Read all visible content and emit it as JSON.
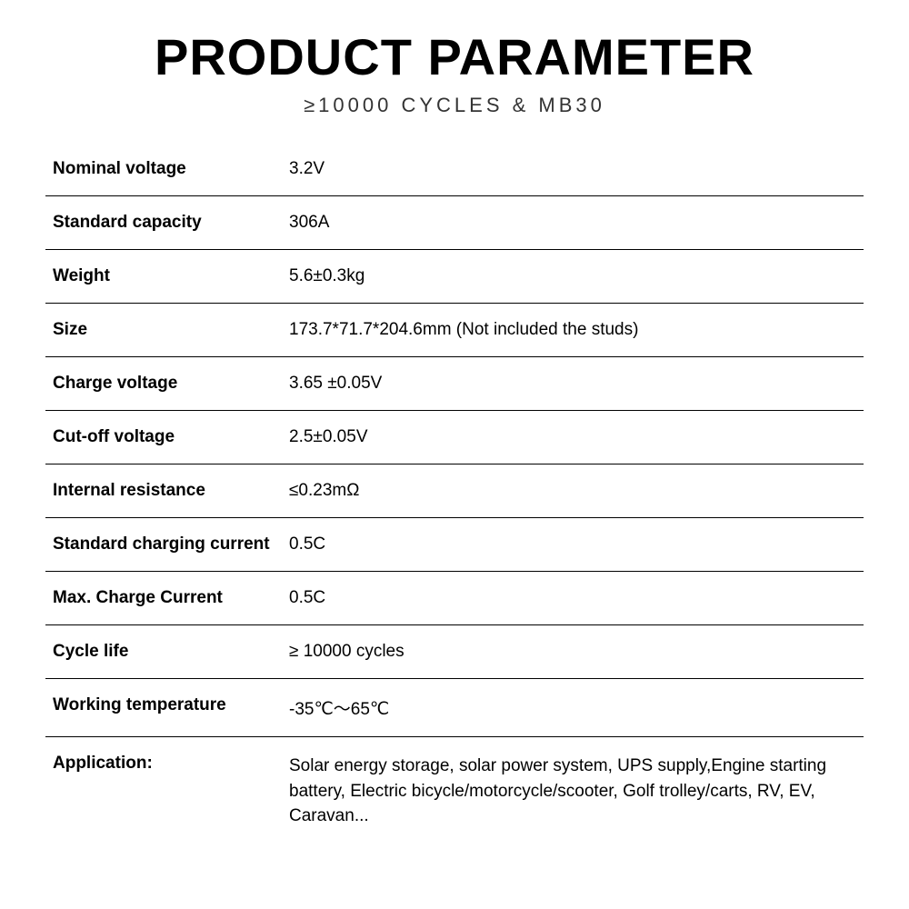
{
  "header": {
    "title": "PRODUCT PARAMETER",
    "subtitle": "≥10000 CYCLES & MB30"
  },
  "specs": [
    {
      "label": "Nominal voltage",
      "value": "3.2V"
    },
    {
      "label": "Standard capacity",
      "value": "306A"
    },
    {
      "label": "Weight",
      "value": "5.6±0.3kg"
    },
    {
      "label": "Size",
      "value": "173.7*71.7*204.6mm (Not included the studs)"
    },
    {
      "label": "Charge voltage",
      "value": "3.65 ±0.05V"
    },
    {
      "label": "Cut-off voltage",
      "value": "2.5±0.05V"
    },
    {
      "label": "Internal resistance",
      "value": "≤0.23mΩ"
    },
    {
      "label": "Standard charging current",
      "value": "0.5C"
    },
    {
      "label": "Max. Charge Current",
      "value": "0.5C"
    },
    {
      "label": "Cycle life",
      "value": "≥ 10000 cycles"
    },
    {
      "label": "Working temperature",
      "value": "-35℃～65℃"
    }
  ],
  "application": {
    "label": "Application:",
    "value": "Solar energy storage, solar power system, UPS supply,Engine starting battery, Electric bicycle/motorcycle/scooter, Golf trolley/carts, RV, EV, Caravan..."
  },
  "styling": {
    "background_color": "#ffffff",
    "text_color": "#000000",
    "title_fontsize": 56,
    "title_fontweight": 900,
    "subtitle_fontsize": 22,
    "subtitle_letter_spacing": 4,
    "row_fontsize": 19,
    "row_padding_v": 18,
    "border_color": "#000000",
    "label_col_width": 260,
    "app_label_col_width": 225
  }
}
